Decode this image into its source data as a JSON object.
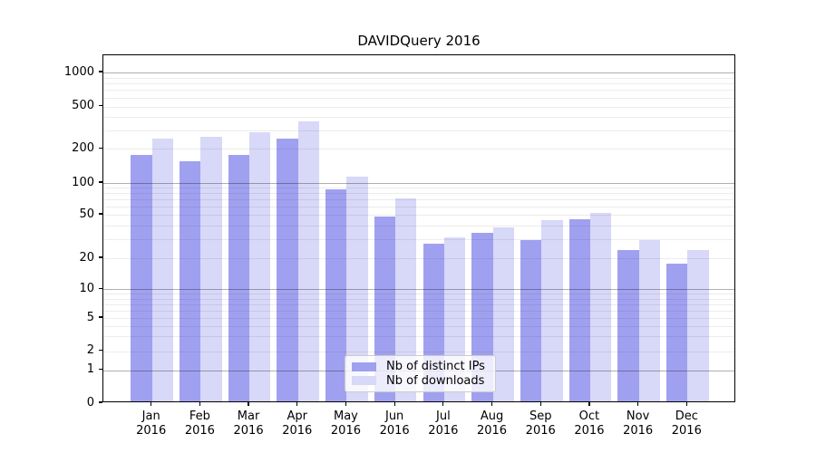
{
  "title": "DAVIDQuery 2016",
  "chart_data": {
    "type": "bar",
    "title": "DAVIDQuery 2016",
    "x_months": [
      "Jan",
      "Feb",
      "Mar",
      "Apr",
      "May",
      "Jun",
      "Jul",
      "Aug",
      "Sep",
      "Oct",
      "Nov",
      "Dec"
    ],
    "x_year": "2016",
    "categories": [
      "Jan 2016",
      "Feb 2016",
      "Mar 2016",
      "Apr 2016",
      "May 2016",
      "Jun 2016",
      "Jul 2016",
      "Aug 2016",
      "Sep 2016",
      "Oct 2016",
      "Nov 2016",
      "Dec 2016"
    ],
    "series": [
      {
        "name": "Nb of distinct IPs",
        "color": "#a0a0f0",
        "values": [
          170,
          150,
          170,
          240,
          84,
          46,
          26,
          33,
          28,
          44,
          23,
          17
        ]
      },
      {
        "name": "Nb of downloads",
        "color": "#d8d8f8",
        "values": [
          240,
          250,
          275,
          345,
          110,
          69,
          30,
          37,
          43,
          50,
          28,
          23
        ]
      }
    ],
    "yscale": "symlog",
    "ylim": [
      0,
      1400
    ],
    "y_ticks": [
      0,
      1,
      2,
      5,
      10,
      20,
      50,
      100,
      200,
      500,
      1000
    ],
    "y_tick_labels": [
      "0",
      "1",
      "2",
      "5",
      "10",
      "20",
      "50",
      "100",
      "200",
      "500",
      "1000"
    ],
    "y_major_gridlines": [
      1,
      10,
      100,
      1000
    ],
    "grid": "horizontal, major and minor, drawn over bars",
    "legend_position": "lower center, inside plot"
  },
  "legend": {
    "items": [
      {
        "label": "Nb of distinct IPs",
        "color": "#a0a0f0"
      },
      {
        "label": "Nb of downloads",
        "color": "#d8d8f8"
      }
    ]
  },
  "colors": {
    "bar_distinct_ips": "#a0a0f0",
    "bar_downloads": "#d8d8f8",
    "grid_major": "rgba(0,0,0,0.31)",
    "grid_minor": "rgba(0,0,0,0.075)",
    "axis": "#000000",
    "background": "#ffffff"
  }
}
